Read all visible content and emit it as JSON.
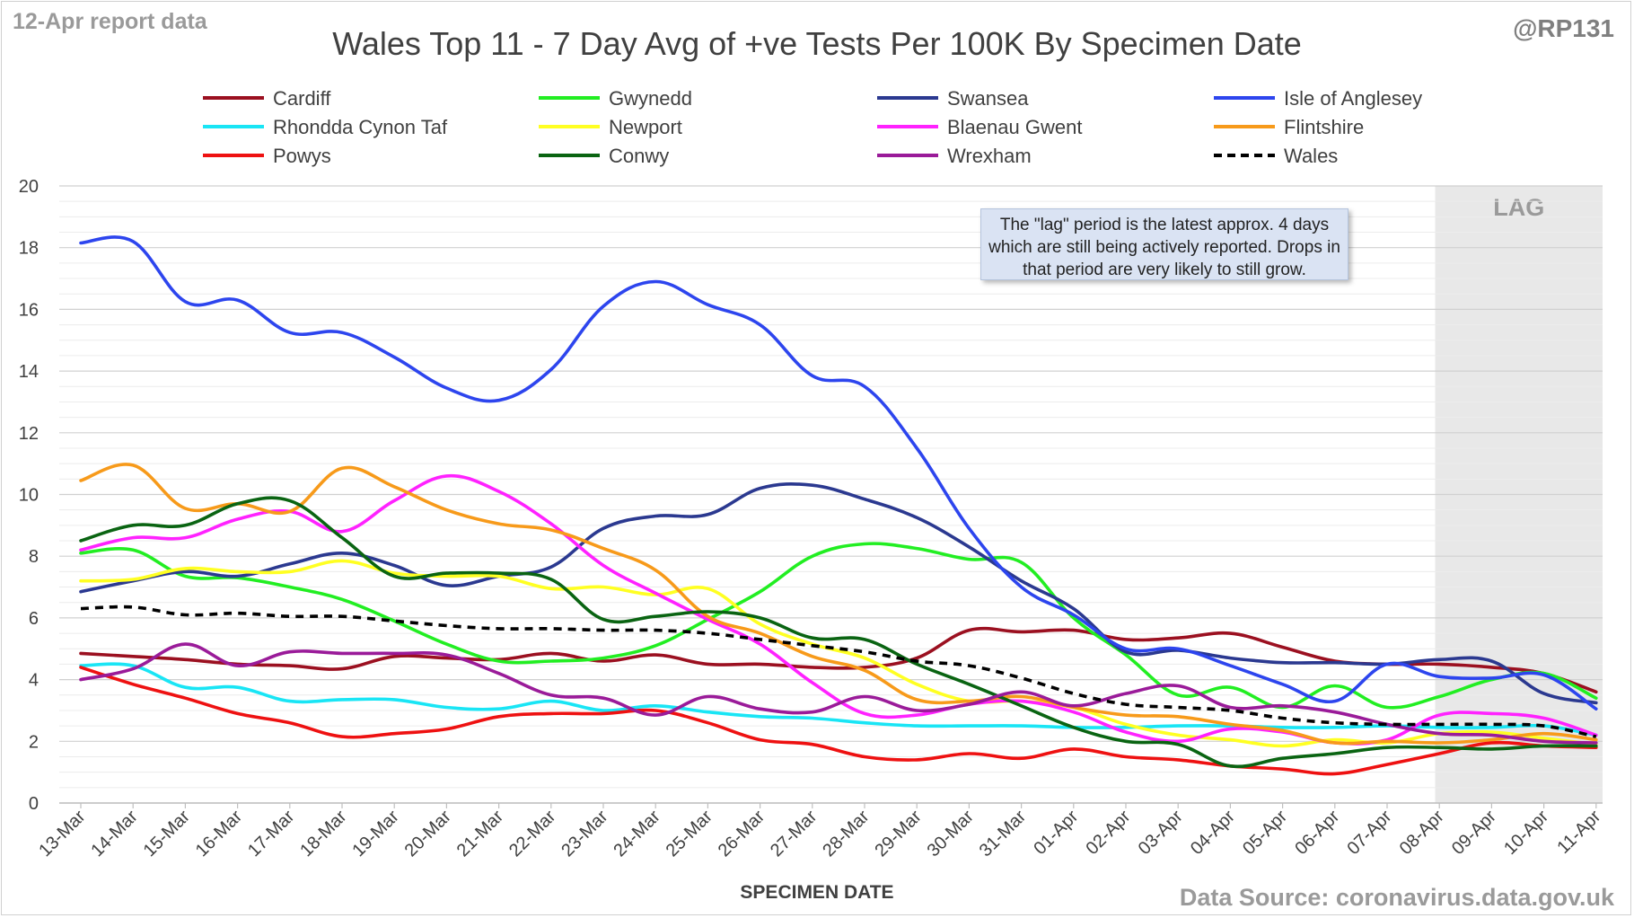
{
  "header": {
    "report_label": "12-Apr report data",
    "handle": "@RP131",
    "source": "Data Source: coronavirus.data.gov.uk"
  },
  "note": "The \"lag\" period is the latest approx. 4 days which are still being actively reported.  Drops in that period are very likely to still grow.",
  "colors": {
    "Cardiff": "#9b1020",
    "Gwynedd": "#22ee22",
    "Swansea": "#2b3990",
    "Isle of Anglesey": "#2d45ee",
    "Rhondda Cynon Taf": "#19e5f5",
    "Newport": "#ffff22",
    "Blaenau Gwent": "#ff22ff",
    "Flintshire": "#f79a1a",
    "Powys": "#ee1111",
    "Conwy": "#0a6412",
    "Wrexham": "#9a1b99",
    "Wales": "#000000",
    "lag_shade": "#e8e8e8",
    "grid": "#d9d9d9"
  },
  "chart_data": {
    "type": "line",
    "title": "Wales Top 11 - 7 Day Avg of +ve Tests Per 100K By Specimen Date",
    "xlabel": "SPECIMEN DATE",
    "ylabel": "",
    "ylim": [
      0,
      20
    ],
    "yticks": [
      0,
      2,
      4,
      6,
      8,
      10,
      12,
      14,
      16,
      18,
      20
    ],
    "grid": true,
    "legend_position": "top",
    "lag_label": "LAG",
    "lag_start": "08-Apr",
    "lag_end": "11-Apr",
    "categories": [
      "13-Mar",
      "14-Mar",
      "15-Mar",
      "16-Mar",
      "17-Mar",
      "18-Mar",
      "19-Mar",
      "20-Mar",
      "21-Mar",
      "22-Mar",
      "23-Mar",
      "24-Mar",
      "25-Mar",
      "26-Mar",
      "27-Mar",
      "28-Mar",
      "29-Mar",
      "30-Mar",
      "31-Mar",
      "01-Apr",
      "02-Apr",
      "03-Apr",
      "04-Apr",
      "05-Apr",
      "06-Apr",
      "07-Apr",
      "08-Apr",
      "09-Apr",
      "10-Apr",
      "11-Apr"
    ],
    "series": [
      {
        "name": "Cardiff",
        "values": [
          4.85,
          4.75,
          4.65,
          4.5,
          4.45,
          4.35,
          4.75,
          4.7,
          4.65,
          4.85,
          4.6,
          4.8,
          4.5,
          4.5,
          4.4,
          4.4,
          4.7,
          5.6,
          5.55,
          5.6,
          5.3,
          5.35,
          5.5,
          5.05,
          4.6,
          4.5,
          4.5,
          4.4,
          4.2,
          3.6
        ]
      },
      {
        "name": "Gwynedd",
        "values": [
          8.1,
          8.2,
          7.35,
          7.3,
          7.0,
          6.6,
          5.9,
          5.15,
          4.6,
          4.6,
          4.7,
          5.1,
          5.95,
          6.85,
          8.0,
          8.4,
          8.25,
          7.9,
          7.8,
          6.0,
          4.8,
          3.5,
          3.75,
          3.1,
          3.8,
          3.1,
          3.45,
          4.0,
          4.2,
          3.4
        ]
      },
      {
        "name": "Swansea",
        "values": [
          6.85,
          7.2,
          7.5,
          7.35,
          7.75,
          8.1,
          7.7,
          7.05,
          7.35,
          7.65,
          8.9,
          9.3,
          9.35,
          10.2,
          10.3,
          9.85,
          9.25,
          8.3,
          7.2,
          6.3,
          4.9,
          4.95,
          4.7,
          4.55,
          4.55,
          4.5,
          4.65,
          4.6,
          3.55,
          3.25
        ]
      },
      {
        "name": "Isle of Anglesey",
        "values": [
          18.15,
          18.2,
          16.25,
          16.3,
          15.25,
          15.25,
          14.45,
          13.45,
          13.05,
          14.05,
          16.1,
          16.9,
          16.15,
          15.5,
          13.85,
          13.5,
          11.5,
          8.9,
          7.0,
          6.1,
          5.0,
          5.0,
          4.45,
          3.85,
          3.3,
          4.5,
          4.1,
          4.05,
          4.15,
          3.05
        ]
      },
      {
        "name": "Rhondda Cynon Taf",
        "values": [
          4.45,
          4.45,
          3.75,
          3.75,
          3.3,
          3.35,
          3.35,
          3.1,
          3.05,
          3.3,
          3.0,
          3.15,
          2.95,
          2.8,
          2.75,
          2.6,
          2.5,
          2.5,
          2.5,
          2.45,
          2.45,
          2.5,
          2.5,
          2.45,
          2.45,
          2.5,
          2.45,
          2.45,
          2.5,
          2.2
        ]
      },
      {
        "name": "Newport",
        "values": [
          7.2,
          7.25,
          7.6,
          7.5,
          7.5,
          7.85,
          7.45,
          7.35,
          7.35,
          6.95,
          7.0,
          6.75,
          6.95,
          5.8,
          5.15,
          4.7,
          3.85,
          3.3,
          3.3,
          3.1,
          2.55,
          2.2,
          2.05,
          1.85,
          2.05,
          1.95,
          2.25,
          2.3,
          2.1,
          1.9
        ]
      },
      {
        "name": "Blaenau Gwent",
        "values": [
          8.2,
          8.6,
          8.6,
          9.2,
          9.45,
          8.8,
          9.8,
          10.6,
          10.1,
          9.05,
          7.7,
          6.8,
          5.95,
          5.15,
          3.9,
          2.9,
          2.85,
          3.2,
          3.3,
          2.95,
          2.3,
          2.0,
          2.4,
          2.3,
          1.95,
          2.05,
          2.85,
          2.9,
          2.75,
          2.2
        ]
      },
      {
        "name": "Flintshire",
        "values": [
          10.45,
          10.95,
          9.55,
          9.7,
          9.45,
          10.85,
          10.25,
          9.5,
          9.05,
          8.85,
          8.25,
          7.55,
          6.05,
          5.5,
          4.75,
          4.3,
          3.35,
          3.3,
          3.45,
          3.1,
          2.85,
          2.8,
          2.55,
          2.35,
          1.95,
          2.0,
          1.95,
          2.05,
          2.25,
          2.05
        ]
      },
      {
        "name": "Powys",
        "values": [
          4.4,
          3.85,
          3.4,
          2.9,
          2.6,
          2.15,
          2.25,
          2.4,
          2.8,
          2.9,
          2.9,
          3.0,
          2.6,
          2.05,
          1.9,
          1.5,
          1.4,
          1.6,
          1.45,
          1.75,
          1.5,
          1.4,
          1.2,
          1.1,
          0.95,
          1.25,
          1.6,
          1.95,
          1.85,
          1.8
        ]
      },
      {
        "name": "Conwy",
        "values": [
          8.5,
          9.0,
          9.0,
          9.7,
          9.8,
          8.6,
          7.35,
          7.45,
          7.45,
          7.25,
          5.95,
          6.05,
          6.2,
          6.0,
          5.35,
          5.3,
          4.5,
          3.85,
          3.15,
          2.45,
          2.0,
          1.9,
          1.2,
          1.45,
          1.6,
          1.8,
          1.8,
          1.75,
          1.85,
          1.85
        ]
      },
      {
        "name": "Wrexham",
        "values": [
          4.0,
          4.35,
          5.15,
          4.45,
          4.9,
          4.85,
          4.85,
          4.8,
          4.2,
          3.5,
          3.4,
          2.85,
          3.45,
          3.05,
          2.95,
          3.45,
          3.0,
          3.2,
          3.6,
          3.15,
          3.55,
          3.8,
          3.1,
          3.15,
          2.95,
          2.55,
          2.25,
          2.2,
          2.0,
          1.95
        ]
      },
      {
        "name": "Wales",
        "values": [
          6.3,
          6.35,
          6.1,
          6.15,
          6.05,
          6.05,
          5.9,
          5.75,
          5.65,
          5.65,
          5.6,
          5.6,
          5.5,
          5.3,
          5.1,
          4.9,
          4.6,
          4.45,
          4.05,
          3.55,
          3.2,
          3.1,
          3.0,
          2.75,
          2.6,
          2.55,
          2.55,
          2.55,
          2.5,
          2.15
        ],
        "dashed": true
      }
    ]
  }
}
